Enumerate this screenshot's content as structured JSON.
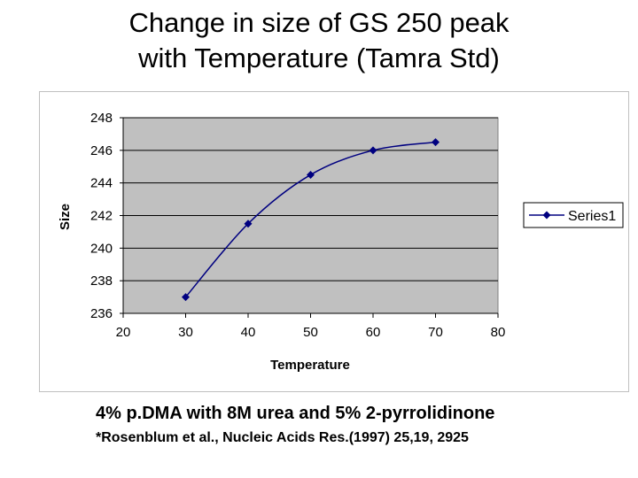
{
  "title": {
    "line1": "Change in size of GS 250 peak",
    "line2": "with Temperature (Tamra Std)"
  },
  "chart_data": {
    "type": "line",
    "title": "",
    "xlabel": "Temperature",
    "ylabel": "Size",
    "xlim": [
      20,
      80
    ],
    "ylim": [
      236,
      248
    ],
    "x_ticks": [
      20,
      30,
      40,
      50,
      60,
      70,
      80
    ],
    "y_ticks": [
      236,
      238,
      240,
      242,
      244,
      246,
      248
    ],
    "grid": true,
    "legend": "right",
    "series": [
      {
        "name": "Series1",
        "x": [
          30,
          40,
          50,
          60,
          70
        ],
        "values": [
          237,
          241.5,
          244.5,
          246,
          246.5
        ]
      }
    ],
    "colors": {
      "plot_area": "#c0c0c0",
      "line": "#000080",
      "gridline": "#000000"
    }
  },
  "caption": "4% p.DMA with 8M urea and 5% 2-pyrrolidinone",
  "citation": "*Rosenblum et al., Nucleic Acids Res.(1997) 25,19, 2925"
}
